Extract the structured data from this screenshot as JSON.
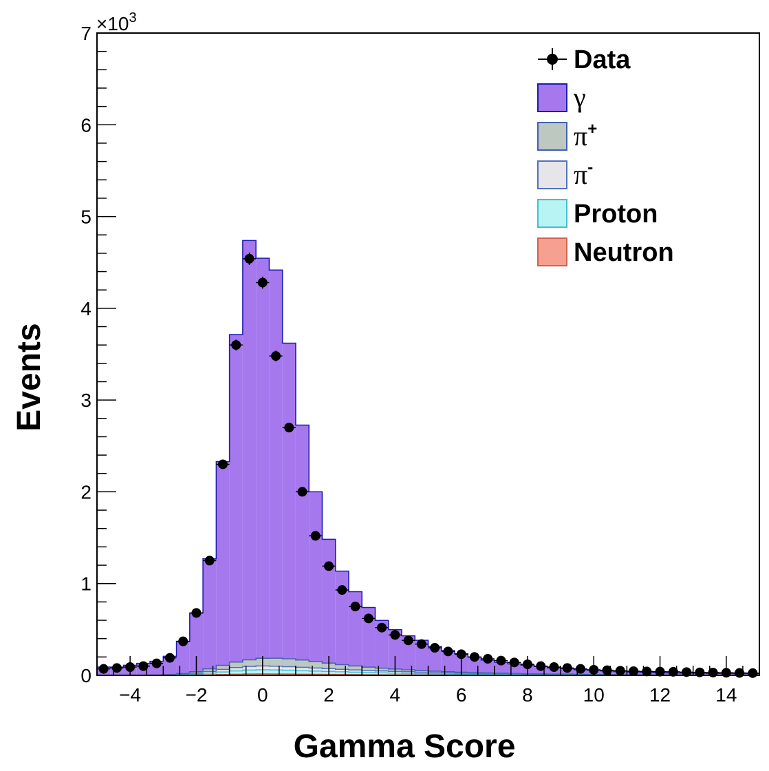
{
  "chart_data": {
    "type": "bar",
    "xlabel": "Gamma Score",
    "ylabel": "Events",
    "y_multiplier_label": "×10",
    "y_multiplier_exp": "3",
    "xlim": [
      -5,
      15
    ],
    "ylim": [
      0,
      7000
    ],
    "x_ticks": [
      -4,
      -2,
      0,
      2,
      4,
      6,
      8,
      10,
      12,
      14
    ],
    "x_tick_labels": [
      "−4",
      "−2",
      "0",
      "2",
      "4",
      "6",
      "8",
      "10",
      "12",
      "14"
    ],
    "y_ticks": [
      0,
      1000,
      2000,
      3000,
      4000,
      5000,
      6000,
      7000
    ],
    "y_tick_labels": [
      "0",
      "1",
      "2",
      "3",
      "4",
      "5",
      "6",
      "7"
    ],
    "bin_width": 0.4,
    "bin_centers": [
      -4.8,
      -4.4,
      -4.0,
      -3.6,
      -3.2,
      -2.8,
      -2.4,
      -2.0,
      -1.6,
      -1.2,
      -0.8,
      -0.4,
      0.0,
      0.4,
      0.8,
      1.2,
      1.6,
      2.0,
      2.4,
      2.8,
      3.2,
      3.6,
      4.0,
      4.4,
      4.8,
      5.2,
      5.6,
      6.0,
      6.4,
      6.8,
      7.2,
      7.6,
      8.0,
      8.4,
      8.8,
      9.2,
      9.6,
      10.0,
      10.4,
      10.8,
      11.2,
      11.6,
      12.0,
      12.4,
      12.8,
      13.2,
      13.6,
      14.0,
      14.4,
      14.8
    ],
    "series": [
      {
        "name": "Neutron",
        "color": "#f5a090",
        "stroke": "#d06050",
        "values": [
          0,
          0,
          0,
          0,
          0,
          0,
          2,
          3,
          6,
          9,
          12,
          15,
          16,
          15,
          14,
          12,
          11,
          10,
          9,
          8,
          7,
          6,
          5,
          5,
          4,
          4,
          3,
          3,
          2,
          2,
          2,
          2,
          1,
          1,
          1,
          1,
          1,
          1,
          1,
          0,
          0,
          0,
          0,
          0,
          0,
          0,
          0,
          0,
          0,
          0
        ]
      },
      {
        "name": "Proton",
        "color": "#b8f4f4",
        "stroke": "#40c0d0",
        "values": [
          0,
          0,
          0,
          0,
          1,
          2,
          5,
          10,
          18,
          28,
          36,
          42,
          44,
          43,
          41,
          38,
          35,
          32,
          29,
          26,
          23,
          21,
          19,
          17,
          15,
          13,
          11,
          10,
          9,
          8,
          7,
          6,
          5,
          5,
          4,
          4,
          3,
          3,
          2,
          2,
          2,
          1,
          1,
          1,
          1,
          1,
          0,
          0,
          0,
          0
        ]
      },
      {
        "name": "π⁻",
        "color": "#e6e6ea",
        "stroke": "#5070c0",
        "values": [
          0,
          0,
          0,
          0,
          1,
          2,
          5,
          10,
          18,
          28,
          36,
          40,
          42,
          41,
          39,
          37,
          34,
          31,
          28,
          25,
          23,
          21,
          19,
          17,
          15,
          13,
          12,
          10,
          9,
          8,
          7,
          6,
          5,
          5,
          4,
          4,
          3,
          3,
          2,
          2,
          2,
          1,
          1,
          1,
          1,
          1,
          0,
          0,
          0,
          0
        ]
      },
      {
        "name": "π⁺",
        "color": "#bcc8c0",
        "stroke": "#4060b0",
        "values": [
          0,
          0,
          0,
          0,
          1,
          3,
          8,
          16,
          28,
          44,
          60,
          72,
          84,
          88,
          86,
          80,
          70,
          60,
          50,
          43,
          36,
          30,
          25,
          21,
          18,
          15,
          13,
          11,
          9,
          8,
          7,
          6,
          5,
          5,
          4,
          4,
          3,
          3,
          3,
          2,
          2,
          2,
          1,
          1,
          1,
          1,
          1,
          1,
          0,
          0
        ]
      },
      {
        "name": "γ",
        "color": "#a678ee",
        "stroke": "#1c1cb0",
        "values": [
          90,
          90,
          110,
          130,
          150,
          200,
          350,
          640,
          1200,
          2220,
          3570,
          4570,
          4360,
          4230,
          3440,
          2560,
          1850,
          1350,
          1020,
          810,
          650,
          520,
          430,
          370,
          330,
          270,
          230,
          200,
          170,
          140,
          120,
          105,
          95,
          80,
          68,
          60,
          52,
          45,
          40,
          34,
          30,
          27,
          25,
          23,
          21,
          20,
          20,
          20,
          20,
          20
        ]
      }
    ],
    "data_points": {
      "name": "Data",
      "values": [
        70,
        80,
        90,
        100,
        130,
        190,
        370,
        680,
        1250,
        2300,
        3600,
        4540,
        4280,
        3480,
        2700,
        2000,
        1520,
        1190,
        930,
        750,
        620,
        520,
        440,
        380,
        340,
        300,
        260,
        230,
        200,
        180,
        160,
        140,
        120,
        100,
        90,
        80,
        70,
        60,
        55,
        50,
        45,
        42,
        40,
        38,
        35,
        32,
        30,
        28,
        26,
        24
      ]
    },
    "legend": [
      {
        "label": "Data",
        "kind": "marker",
        "greek": false
      },
      {
        "label": "γ",
        "kind": "box",
        "color": "#a678ee",
        "stroke": "#1c1cb0",
        "greek": true
      },
      {
        "label": "π",
        "sup": "+",
        "kind": "box",
        "color": "#bcc8c0",
        "stroke": "#4060b0",
        "greek": true
      },
      {
        "label": "π",
        "sup": "-",
        "kind": "box",
        "color": "#e6e6ea",
        "stroke": "#5070c0",
        "greek": true
      },
      {
        "label": "Proton",
        "kind": "box",
        "color": "#b8f4f4",
        "stroke": "#40c0d0",
        "greek": false
      },
      {
        "label": "Neutron",
        "kind": "box",
        "color": "#f5a090",
        "stroke": "#d06050",
        "greek": false
      }
    ],
    "legend_position": "top-right",
    "grid": false
  }
}
